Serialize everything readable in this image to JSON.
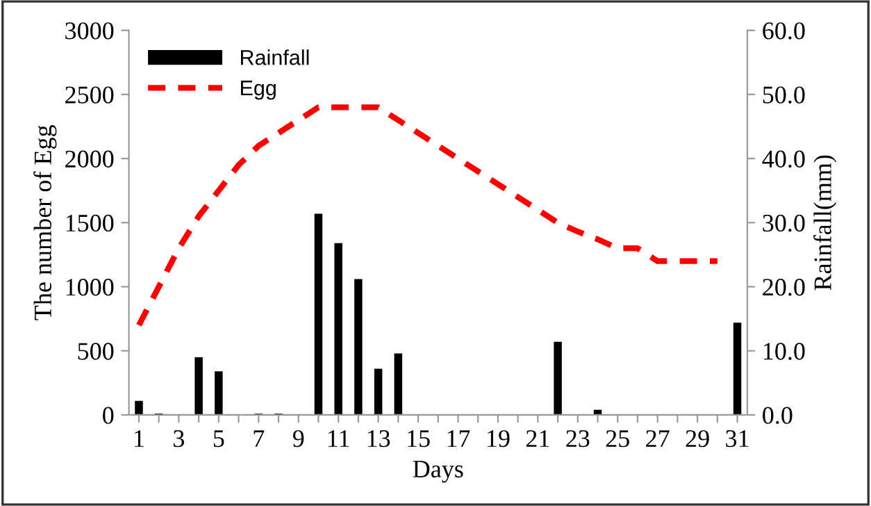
{
  "chart_data": {
    "type": "bar",
    "xlabel": "Days",
    "ylabel": "The number of Egg",
    "y2label": "Rainfall(mm)",
    "x": [
      1,
      2,
      3,
      4,
      5,
      6,
      7,
      8,
      9,
      10,
      11,
      12,
      13,
      14,
      15,
      16,
      17,
      18,
      19,
      20,
      21,
      22,
      23,
      24,
      25,
      26,
      27,
      28,
      29,
      30,
      31
    ],
    "xlim": [
      0.5,
      31.5
    ],
    "xticks": [
      1,
      {
        "value": 2,
        "label": null
      },
      3,
      {
        "value": 4,
        "label": null
      },
      5,
      {
        "value": 6,
        "label": null
      },
      7,
      {
        "value": 8,
        "label": null
      },
      9,
      {
        "value": 10,
        "label": null
      },
      11,
      {
        "value": 12,
        "label": null
      },
      13,
      {
        "value": 14,
        "label": null
      },
      15,
      {
        "value": 16,
        "label": null
      },
      17,
      {
        "value": 18,
        "label": null
      },
      19,
      {
        "value": 20,
        "label": null
      },
      21,
      {
        "value": 22,
        "label": null
      },
      23,
      {
        "value": 24,
        "label": null
      },
      25,
      {
        "value": 26,
        "label": null
      },
      27,
      {
        "value": 28,
        "label": null
      },
      29,
      {
        "value": 30,
        "label": null
      },
      31
    ],
    "ylim": [
      0,
      3000
    ],
    "yticks": [
      0,
      500,
      1000,
      1500,
      2000,
      2500,
      3000
    ],
    "y2lim": [
      0,
      60
    ],
    "y2ticks": [
      {
        "value": 0,
        "label": "0.0"
      },
      {
        "value": 10,
        "label": "10.0"
      },
      {
        "value": 20,
        "label": "20.0"
      },
      {
        "value": 30,
        "label": "30.0"
      },
      {
        "value": 40,
        "label": "40.0"
      },
      {
        "value": 50,
        "label": "50.0"
      },
      {
        "value": 60,
        "label": "60.0"
      }
    ],
    "series": [
      {
        "name": "Rainfall",
        "axis": "y2",
        "color": "#000000",
        "values": [
          2.2,
          0.2,
          0,
          9.0,
          6.8,
          0,
          0.2,
          0.2,
          0,
          31.4,
          26.8,
          21.2,
          7.2,
          9.6,
          0,
          0,
          0,
          0,
          0,
          0,
          0,
          11.4,
          0,
          0.8,
          0,
          0,
          0,
          0,
          0,
          0,
          14.4
        ]
      },
      {
        "name": "Egg",
        "type": "line",
        "color": "#ff0000",
        "line_style": "dashed",
        "values": [
          700,
          1000,
          1300,
          1550,
          1750,
          1950,
          2100,
          2200,
          2300,
          2400,
          2400,
          2400,
          2400,
          2300,
          2200,
          2100,
          2000,
          1900,
          1800,
          1700,
          1600,
          1500,
          1430,
          1370,
          1300,
          1300,
          1200,
          1200,
          1200,
          1200,
          null
        ]
      }
    ],
    "legend": "top left",
    "grid": false
  }
}
